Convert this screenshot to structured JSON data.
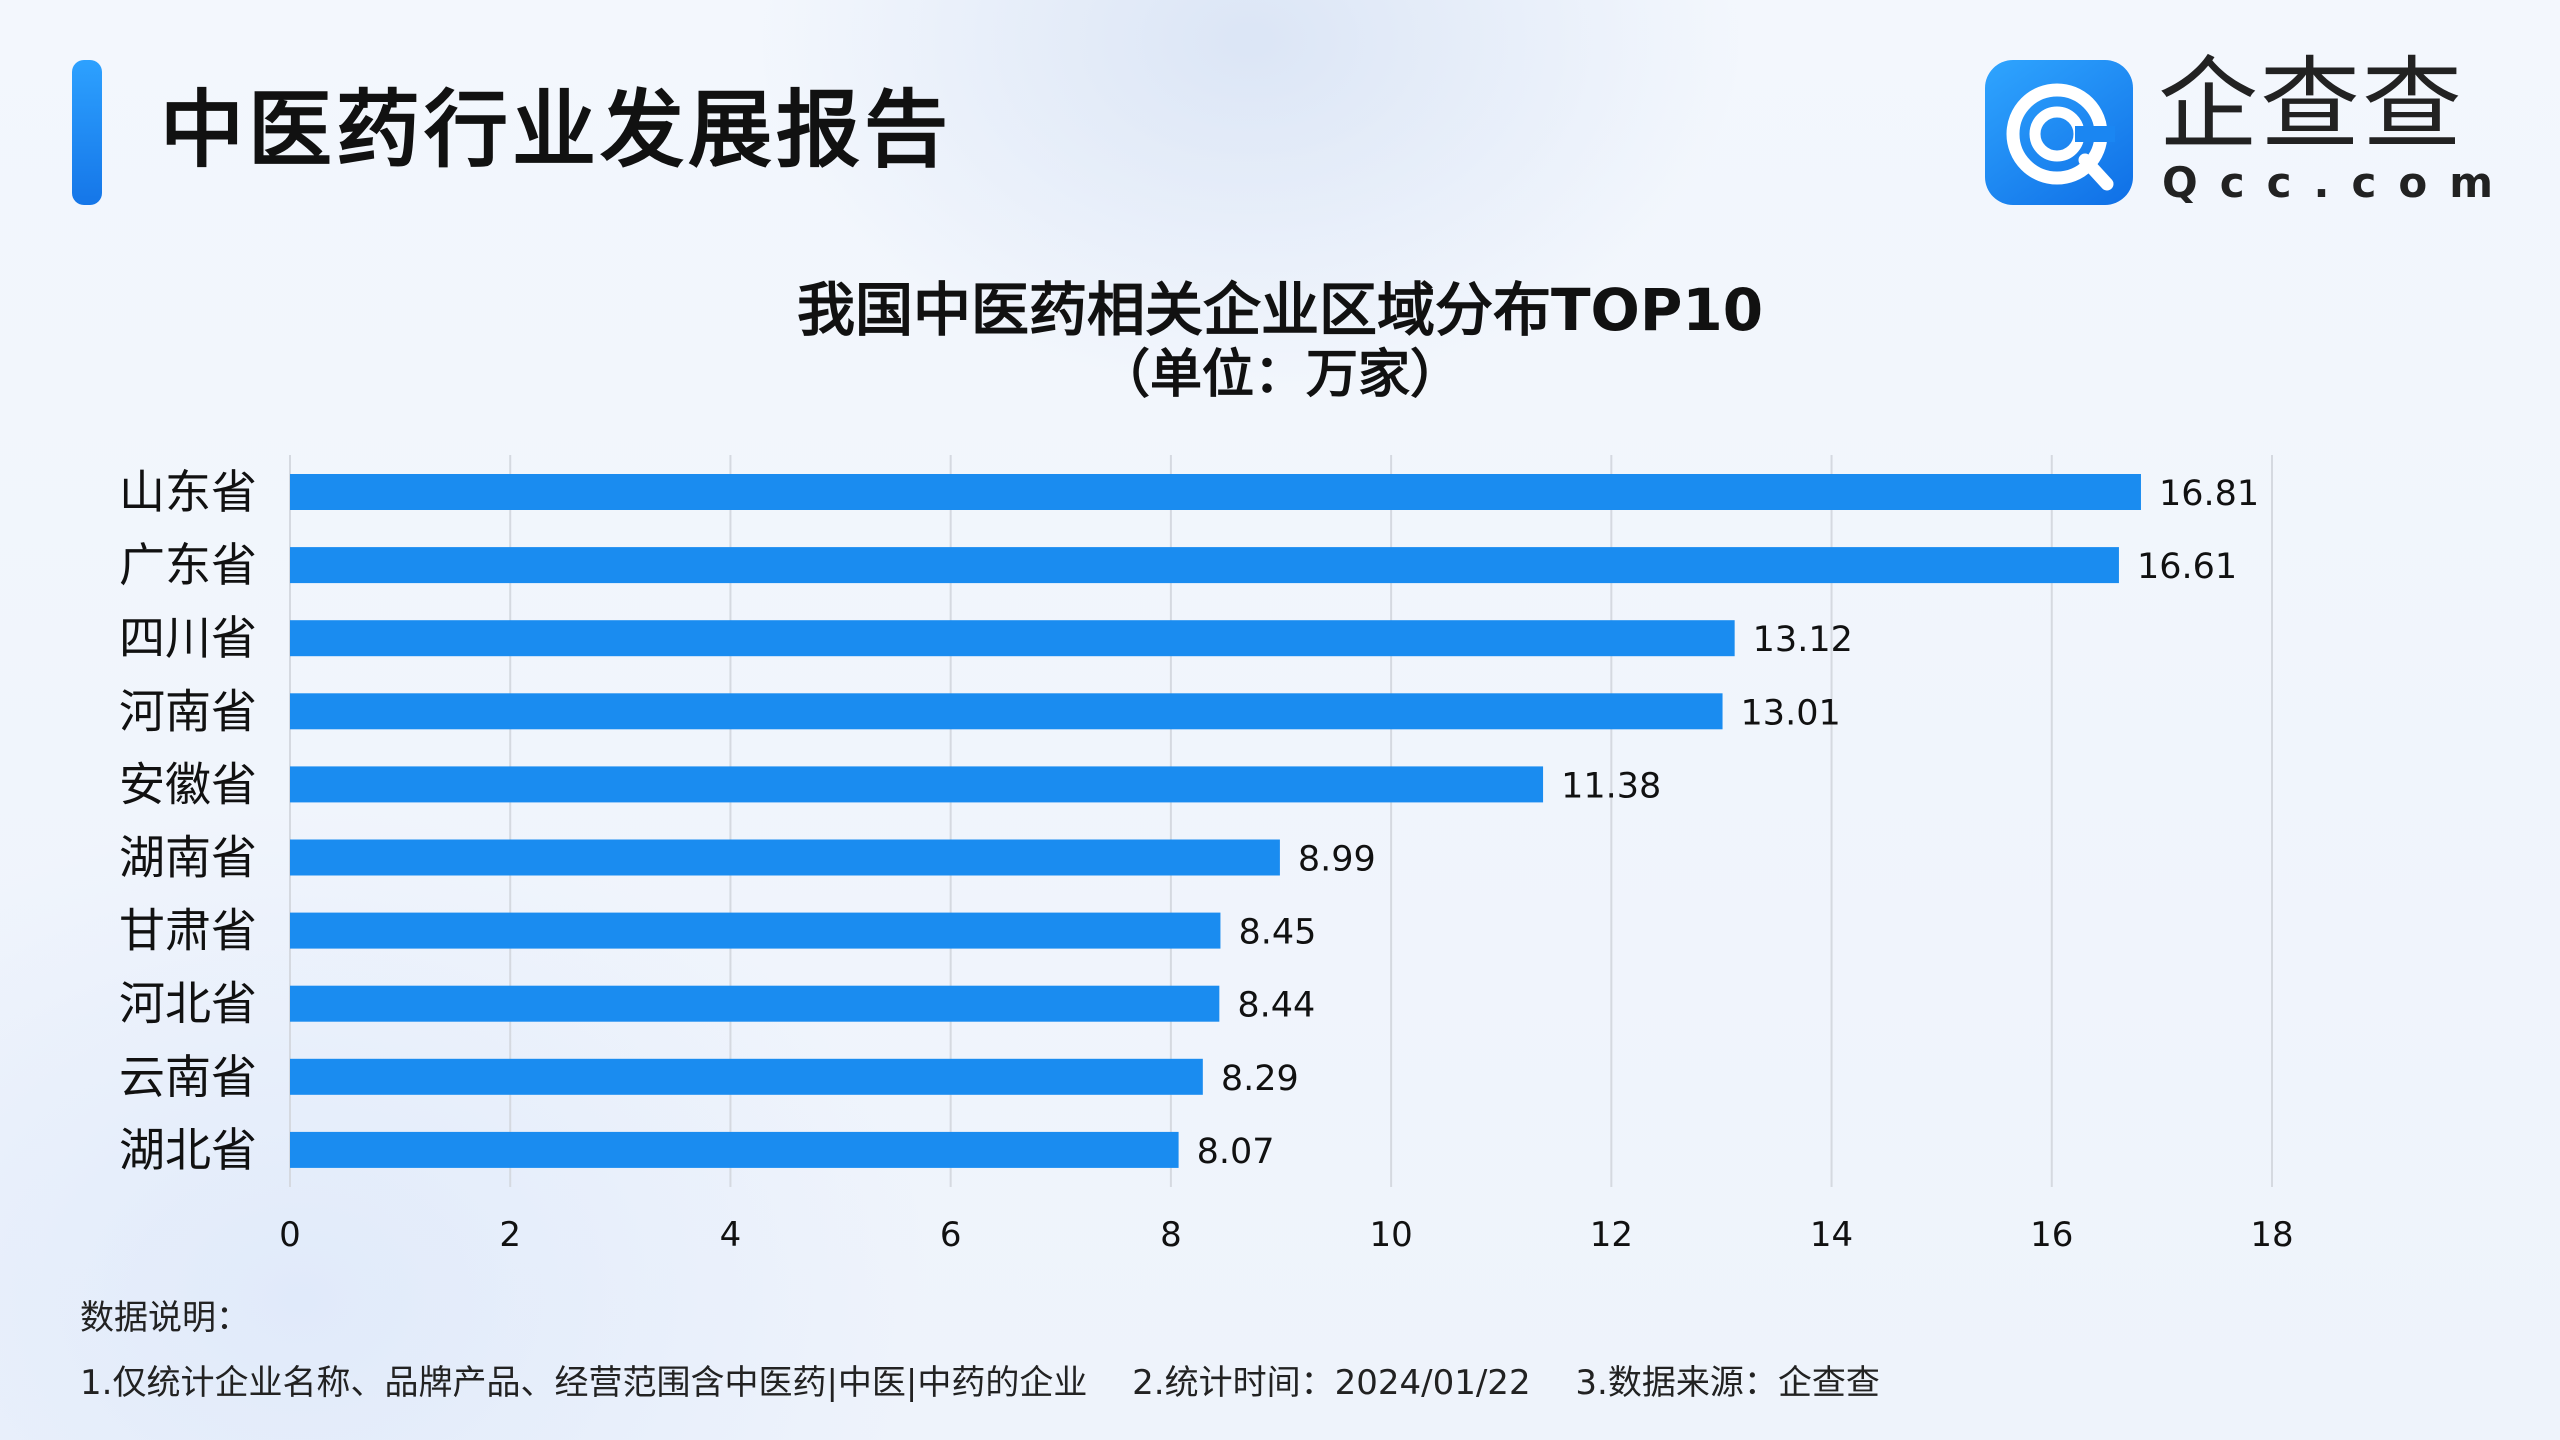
{
  "header": {
    "title": "中医药行业发展报告"
  },
  "brand": {
    "name": "企查查",
    "domain": "Qcc.com",
    "logo_icon": "qcc-logo-icon"
  },
  "colors": {
    "accent": "#1a8cf0",
    "bar": "#1a8cf0",
    "grid": "#d5d9e0",
    "text": "#111111"
  },
  "chart_data": {
    "type": "bar",
    "orientation": "horizontal",
    "title": "我国中医药相关企业区域分布TOP10",
    "subtitle": "（单位：万家）",
    "categories": [
      "山东省",
      "广东省",
      "四川省",
      "河南省",
      "安徽省",
      "湖南省",
      "甘肃省",
      "河北省",
      "云南省",
      "湖北省"
    ],
    "values": [
      16.81,
      16.61,
      13.12,
      13.01,
      11.38,
      8.99,
      8.45,
      8.44,
      8.29,
      8.07
    ],
    "value_labels": [
      "16.81",
      "16.61",
      "13.12",
      "13.01",
      "11.38",
      "8.99",
      "8.45",
      "8.44",
      "8.29",
      "8.07"
    ],
    "xlim": [
      0,
      18
    ],
    "xticks": [
      "0",
      "2",
      "4",
      "6",
      "8",
      "10",
      "12",
      "14",
      "16",
      "18"
    ],
    "grid": true,
    "legend": "none"
  },
  "notes": {
    "heading": "数据说明：",
    "items": [
      "1.仅统计企业名称、品牌产品、经营范围含中医药|中医|中药的企业",
      "2.统计时间：2024/01/22",
      "3.数据来源：企查查"
    ]
  }
}
